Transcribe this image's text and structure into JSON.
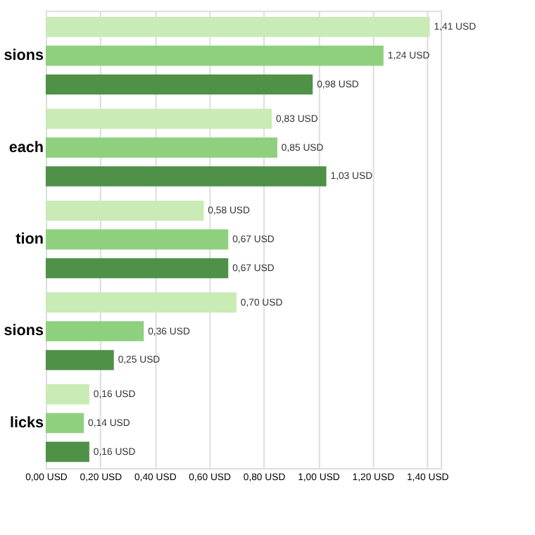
{
  "chart_data": {
    "type": "bar",
    "orientation": "horizontal",
    "categories": [
      "sions",
      "each",
      "tion",
      "sions",
      "licks"
    ],
    "series": [
      {
        "color": "#c9ebb5",
        "values": [
          1.41,
          0.83,
          0.58,
          0.7,
          0.16
        ],
        "value_labels": [
          "1,41 USD",
          "0,83 USD",
          "0,58 USD",
          "0,70 USD",
          "0,16 USD"
        ]
      },
      {
        "color": "#8fd07f",
        "values": [
          1.24,
          0.85,
          0.67,
          0.36,
          0.14
        ],
        "value_labels": [
          "1,24 USD",
          "0,85 USD",
          "0,67 USD",
          "0,36 USD",
          "0,14 USD"
        ]
      },
      {
        "color": "#4e9147",
        "values": [
          0.98,
          1.03,
          0.67,
          0.25,
          0.16
        ],
        "value_labels": [
          "0,98 USD",
          "1,03 USD",
          "0,67 USD",
          "0,25 USD",
          "0,16 USD"
        ]
      }
    ],
    "xlim": [
      0,
      1.45
    ],
    "xticks": [
      {
        "value": 0,
        "label": "0,00 USD"
      },
      {
        "value": 0.2,
        "label": "0,20 USD"
      },
      {
        "value": 0.4,
        "label": "0,40 USD"
      },
      {
        "value": 0.6,
        "label": "0,60 USD"
      },
      {
        "value": 0.8,
        "label": "0,80 USD"
      },
      {
        "value": 1.0,
        "label": "1,00 USD"
      },
      {
        "value": 1.2,
        "label": "1,20 USD"
      },
      {
        "value": 1.4,
        "label": "1,40 USD"
      }
    ],
    "grid": "x",
    "legend": false
  }
}
